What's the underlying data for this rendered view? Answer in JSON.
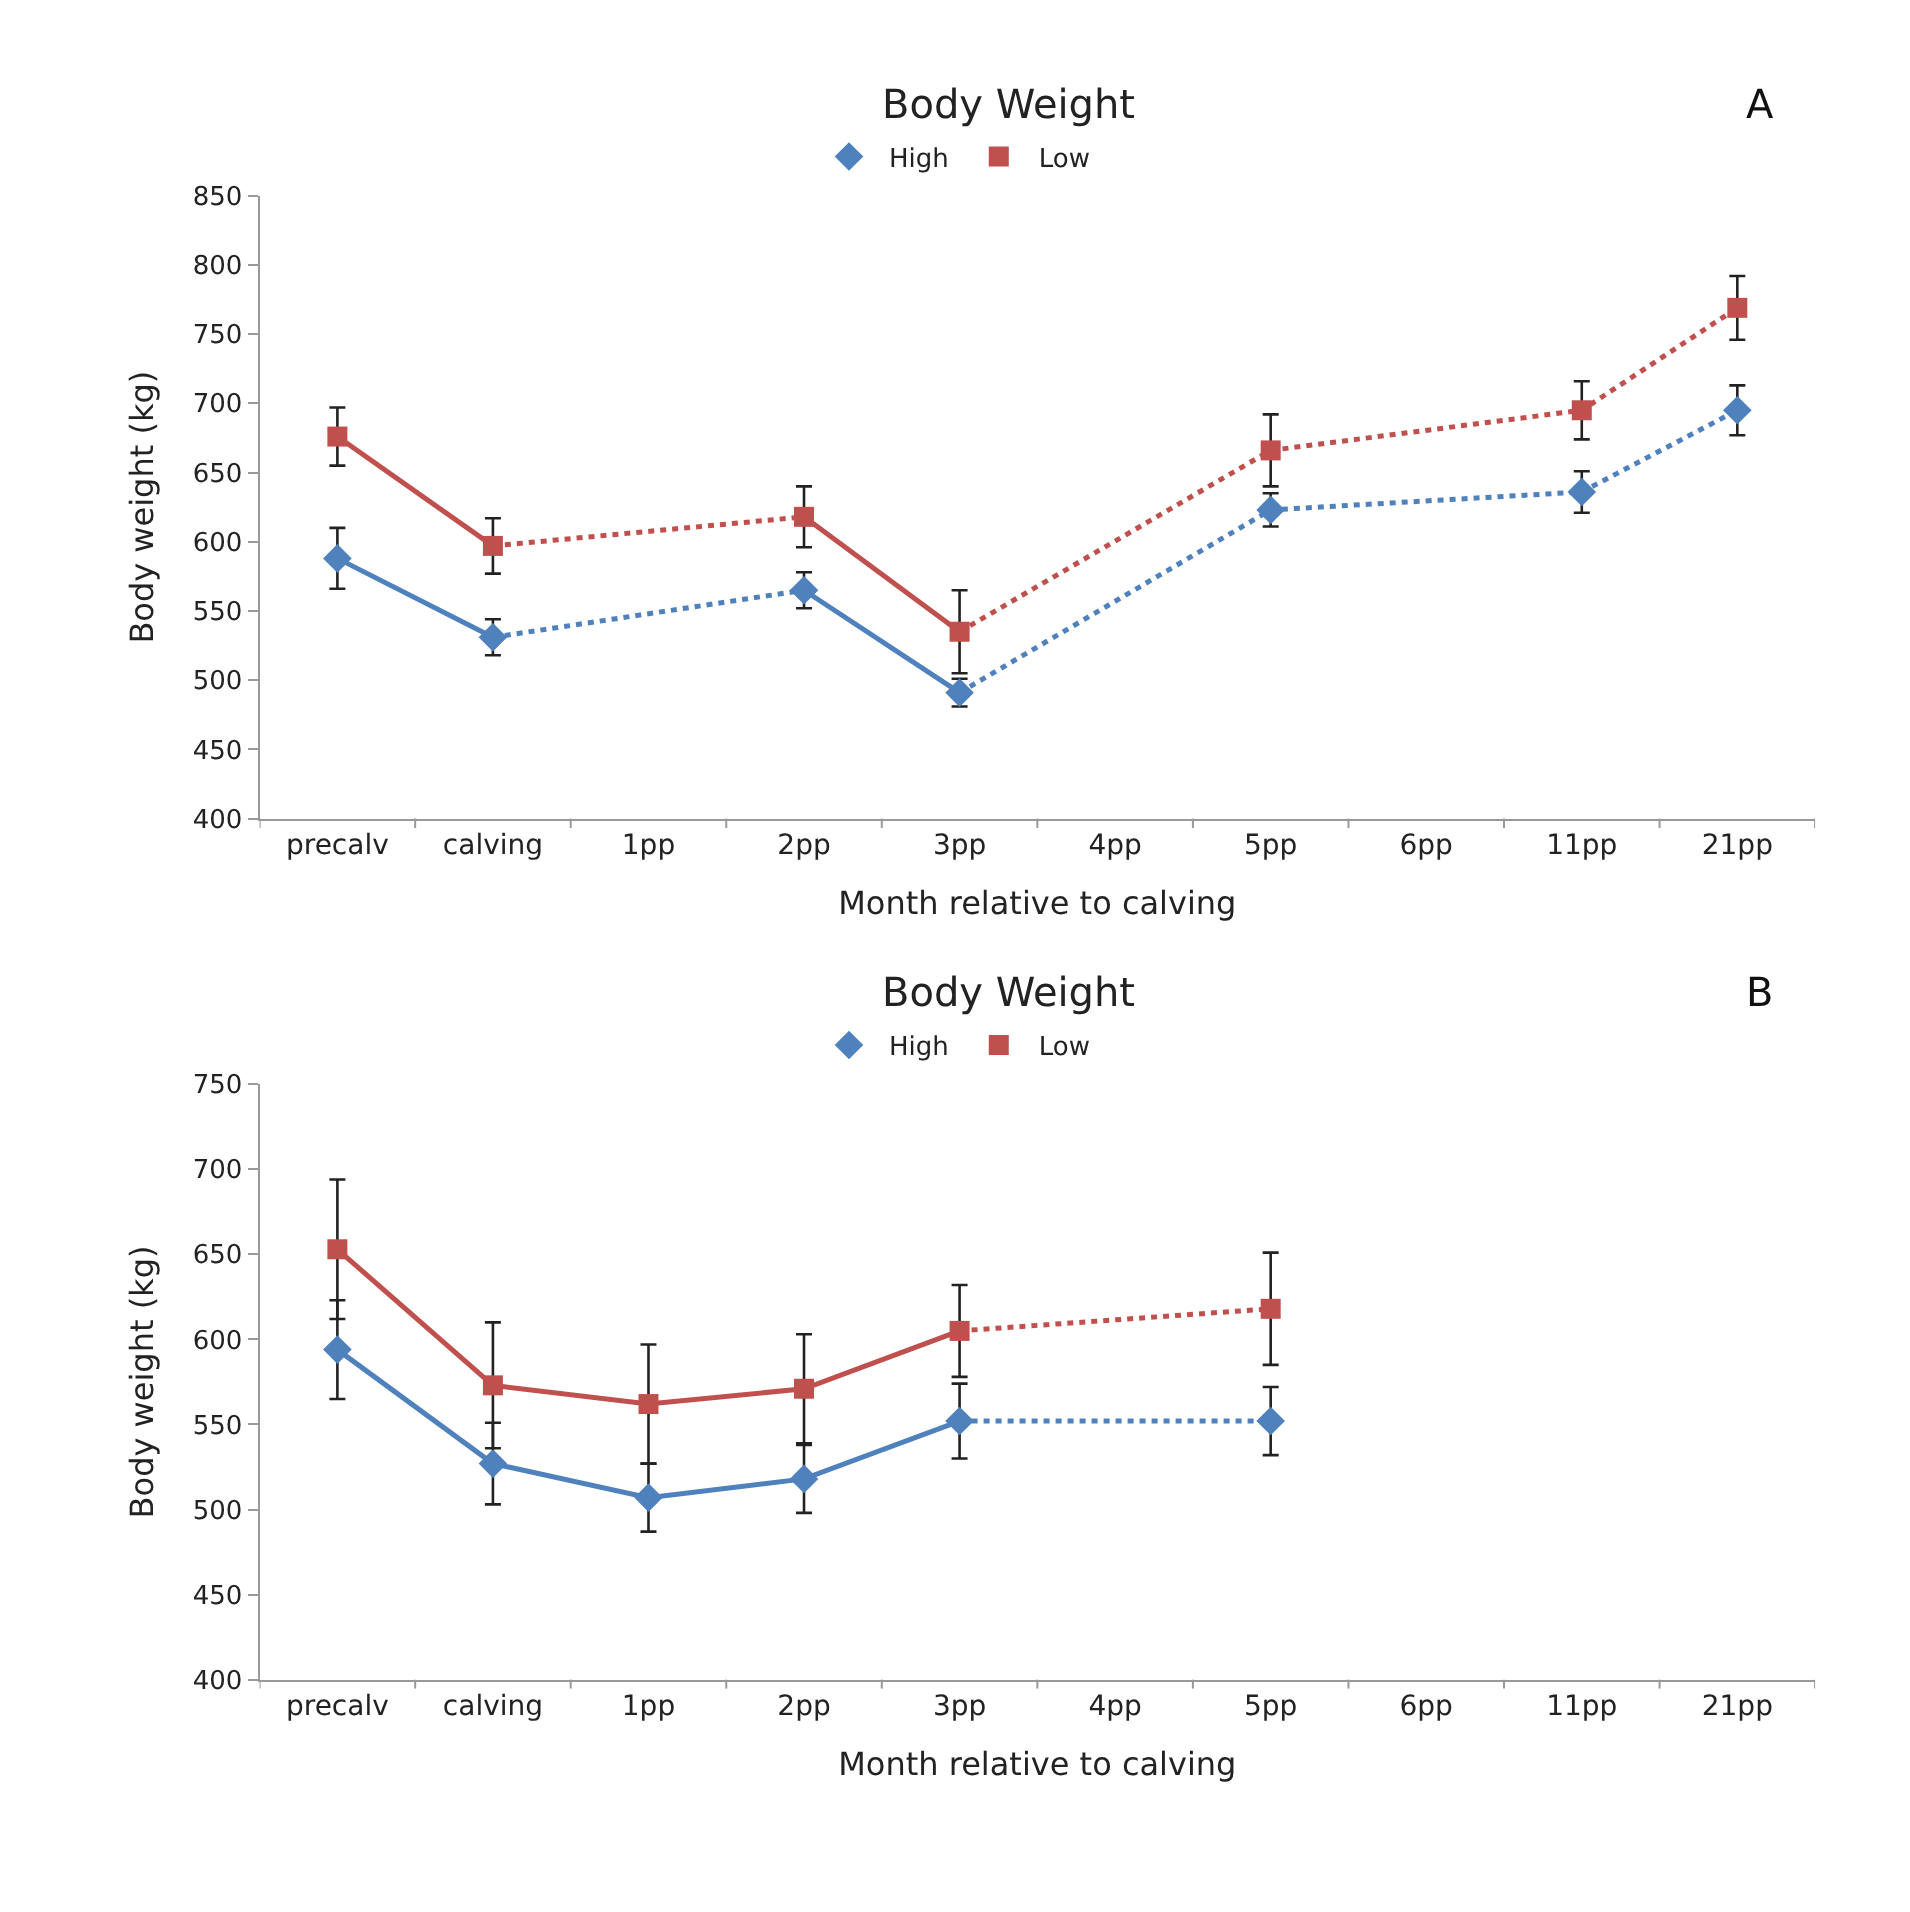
{
  "chart_data": [
    {
      "type": "line",
      "title": "Body Weight",
      "xlabel": "Month relative to calving",
      "ylabel": "Body weight (kg)",
      "annotations": [
        "A"
      ],
      "categories": [
        "precalv",
        "calving",
        "1pp",
        "2pp",
        "3pp",
        "4pp",
        "5pp",
        "6pp",
        "11pp",
        "21pp"
      ],
      "ylim": [
        400,
        850
      ],
      "yticks": [
        400,
        450,
        500,
        550,
        600,
        650,
        700,
        750,
        800,
        850
      ],
      "legend": "top",
      "series": [
        {
          "color": "#4f81bd",
          "marker": "none",
          "line_style": "solid",
          "x": [
            "precalv",
            "calving"
          ],
          "values": [
            588,
            531
          ]
        },
        {
          "color": "#4f81bd",
          "marker": "none",
          "line_style": "solid",
          "x": [
            "2pp",
            "3pp"
          ],
          "values": [
            565,
            491
          ]
        },
        {
          "color": "#4f81bd",
          "marker": "none",
          "line_style": "dotted",
          "x": [
            "calving",
            "2pp"
          ],
          "values": [
            531,
            565
          ]
        },
        {
          "color": "#4f81bd",
          "marker": "none",
          "line_style": "dotted",
          "x": [
            "3pp",
            "5pp",
            "11pp",
            "21pp"
          ],
          "values": [
            491,
            623,
            636,
            695
          ]
        },
        {
          "color": "#c0504d",
          "marker": "none",
          "line_style": "solid",
          "x": [
            "precalv",
            "calving"
          ],
          "values": [
            676,
            597
          ]
        },
        {
          "color": "#c0504d",
          "marker": "none",
          "line_style": "solid",
          "x": [
            "2pp",
            "3pp"
          ],
          "values": [
            618,
            535
          ]
        },
        {
          "color": "#c0504d",
          "marker": "none",
          "line_style": "dotted",
          "x": [
            "calving",
            "2pp"
          ],
          "values": [
            597,
            618
          ]
        },
        {
          "color": "#c0504d",
          "marker": "none",
          "line_style": "dotted",
          "x": [
            "3pp",
            "5pp",
            "11pp",
            "21pp"
          ],
          "values": [
            535,
            666,
            695,
            769
          ]
        },
        {
          "name": "High",
          "type": "scatter",
          "color": "#4f81bd",
          "marker": "diamond",
          "values": [
            588,
            531,
            null,
            565,
            491,
            null,
            623,
            null,
            636,
            695
          ],
          "errors": [
            22,
            13,
            null,
            13,
            10,
            null,
            12,
            null,
            15,
            18
          ]
        },
        {
          "name": "Low",
          "type": "scatter",
          "color": "#c0504d",
          "marker": "square",
          "values": [
            676,
            597,
            null,
            618,
            535,
            null,
            666,
            null,
            695,
            769
          ],
          "errors": [
            21,
            20,
            null,
            22,
            30,
            null,
            26,
            null,
            21,
            23
          ]
        }
      ]
    },
    {
      "type": "line",
      "title": "Body Weight",
      "xlabel": "Month relative to calving",
      "ylabel": "Body weight (kg)",
      "annotations": [
        "B"
      ],
      "categories": [
        "precalv",
        "calving",
        "1pp",
        "2pp",
        "3pp",
        "4pp",
        "5pp",
        "6pp",
        "11pp",
        "21pp"
      ],
      "ylim": [
        400,
        750
      ],
      "yticks": [
        400,
        450,
        500,
        550,
        600,
        650,
        700,
        750
      ],
      "legend": "top",
      "series": [
        {
          "color": "#4f81bd",
          "marker": "none",
          "line_style": "solid",
          "x": [
            "precalv",
            "calving",
            "1pp",
            "2pp",
            "3pp"
          ],
          "values": [
            594,
            527,
            507,
            518,
            552
          ]
        },
        {
          "color": "#4f81bd",
          "marker": "none",
          "line_style": "dotted",
          "x": [
            "3pp",
            "5pp"
          ],
          "values": [
            552,
            552
          ]
        },
        {
          "color": "#c0504d",
          "marker": "none",
          "line_style": "solid",
          "x": [
            "precalv",
            "calving",
            "1pp",
            "2pp",
            "3pp"
          ],
          "values": [
            653,
            573,
            562,
            571,
            605
          ]
        },
        {
          "color": "#c0504d",
          "marker": "none",
          "line_style": "dotted",
          "x": [
            "3pp",
            "5pp"
          ],
          "values": [
            605,
            618
          ]
        },
        {
          "name": "High",
          "type": "scatter",
          "color": "#4f81bd",
          "marker": "diamond",
          "values": [
            594,
            527,
            507,
            518,
            552,
            null,
            552,
            null,
            null,
            null
          ],
          "errors": [
            29,
            24,
            20,
            20,
            22,
            null,
            20,
            null,
            null,
            null
          ]
        },
        {
          "name": "Low",
          "type": "scatter",
          "color": "#c0504d",
          "marker": "square",
          "values": [
            653,
            573,
            562,
            571,
            605,
            null,
            618,
            null,
            null,
            null
          ],
          "errors": [
            41,
            37,
            35,
            32,
            27,
            null,
            33,
            null,
            null,
            null
          ]
        }
      ]
    }
  ]
}
